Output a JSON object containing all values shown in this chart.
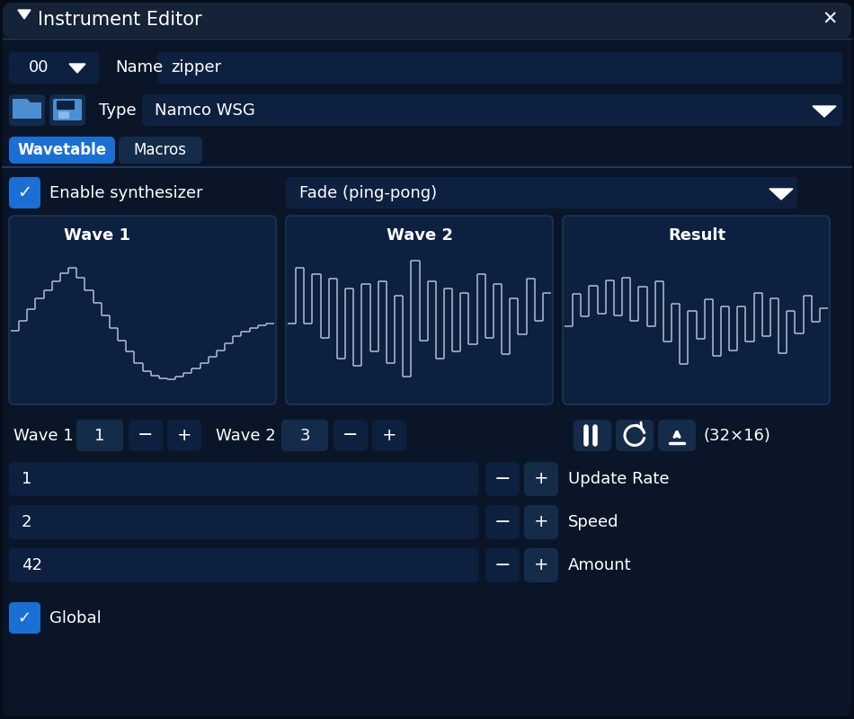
{
  "bg_color": "#060d18",
  "panel_dark": "#0a1628",
  "header_color": "#152338",
  "btn_color": "#152b4a",
  "btn_dark": "#0e2040",
  "tab_active": "#1a6fd4",
  "tab_inactive": "#152b4a",
  "text_color": "#ffffff",
  "border_color": "#1e3a5c",
  "wave_bg": "#0e2040",
  "wave_line": "#b0bdd8",
  "sep_color": "#1e3a5c",
  "title": "Instrument Editor",
  "instrument_num": "00",
  "name_label": "Name",
  "name_value": "zipper",
  "type_label": "Type",
  "type_value": "Namco WSG",
  "tab1": "Wavetable",
  "tab2": "Macros",
  "enable_text": "Enable synthesizer",
  "fade_text": "Fade (ping-pong)",
  "wave1_label": "Wave 1",
  "wave2_label": "Wave 2",
  "result_label": "Result",
  "wave1_num": "1",
  "wave2_num": "3",
  "dim_text": "(32×16)",
  "update_rate_val": "1",
  "speed_val": "2",
  "amount_val": "42",
  "update_rate_label": "Update Rate",
  "speed_label": "Speed",
  "amount_label": "Amount",
  "global_label": "Global",
  "wave1_data": [
    0.45,
    0.52,
    0.6,
    0.68,
    0.74,
    0.8,
    0.86,
    0.9,
    0.83,
    0.74,
    0.65,
    0.56,
    0.47,
    0.38,
    0.3,
    0.22,
    0.16,
    0.13,
    0.11,
    0.1,
    0.12,
    0.15,
    0.18,
    0.22,
    0.26,
    0.31,
    0.36,
    0.41,
    0.44,
    0.47,
    0.49,
    0.5
  ],
  "wave2_data": [
    0.5,
    0.9,
    0.5,
    0.85,
    0.4,
    0.82,
    0.25,
    0.75,
    0.2,
    0.78,
    0.3,
    0.8,
    0.22,
    0.7,
    0.12,
    0.95,
    0.38,
    0.8,
    0.25,
    0.75,
    0.3,
    0.72,
    0.35,
    0.85,
    0.4,
    0.78,
    0.28,
    0.68,
    0.42,
    0.82,
    0.52,
    0.72
  ],
  "result_data": [
    0.48,
    0.71,
    0.55,
    0.77,
    0.57,
    0.81,
    0.56,
    0.83,
    0.52,
    0.76,
    0.48,
    0.8,
    0.37,
    0.64,
    0.21,
    0.59,
    0.39,
    0.67,
    0.27,
    0.62,
    0.31,
    0.62,
    0.37,
    0.72,
    0.41,
    0.68,
    0.29,
    0.59,
    0.43,
    0.7,
    0.51,
    0.61
  ]
}
